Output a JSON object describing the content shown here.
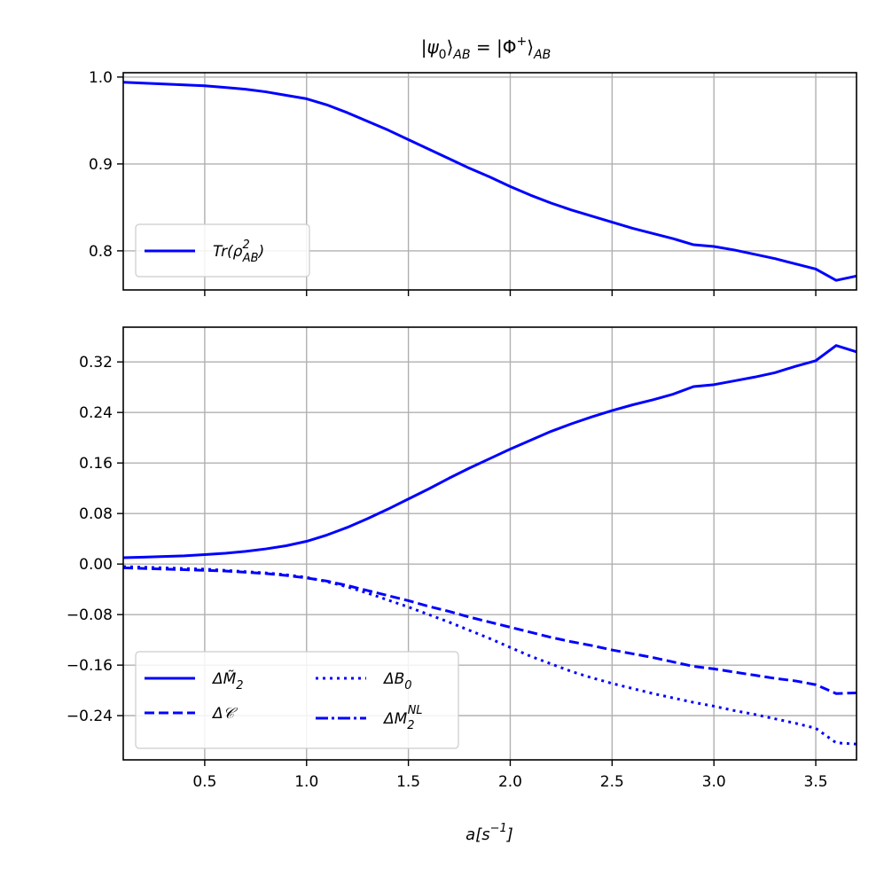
{
  "chart_data": [
    {
      "type": "line",
      "title": "|ψ₀⟩_AB = |Φ⁺⟩_AB",
      "xlabel": "",
      "ylabel": "",
      "xlim": [
        0.1,
        3.7
      ],
      "ylim": [
        0.755,
        1.005
      ],
      "xticks": [
        0.5,
        1.0,
        1.5,
        2.0,
        2.5,
        3.0,
        3.5
      ],
      "xtick_labels_visible": false,
      "yticks": [
        0.8,
        0.9,
        1.0
      ],
      "ytick_labels": [
        "0.8",
        "0.9",
        "1.0"
      ],
      "grid": true,
      "legend_position": "lower-left",
      "series": [
        {
          "name": "Tr(ρ²_AB)",
          "color": "#0000ff",
          "style": "solid",
          "x": [
            0.1,
            0.2,
            0.3,
            0.4,
            0.5,
            0.6,
            0.7,
            0.8,
            0.9,
            1.0,
            1.1,
            1.2,
            1.3,
            1.4,
            1.5,
            1.6,
            1.7,
            1.8,
            1.9,
            2.0,
            2.1,
            2.2,
            2.3,
            2.4,
            2.5,
            2.6,
            2.7,
            2.8,
            2.9,
            3.0,
            3.1,
            3.2,
            3.3,
            3.4,
            3.5,
            3.6,
            3.7
          ],
          "y": [
            0.994,
            0.993,
            0.992,
            0.991,
            0.99,
            0.988,
            0.986,
            0.983,
            0.979,
            0.975,
            0.968,
            0.959,
            0.949,
            0.939,
            0.928,
            0.917,
            0.906,
            0.895,
            0.885,
            0.874,
            0.864,
            0.855,
            0.847,
            0.84,
            0.833,
            0.826,
            0.82,
            0.814,
            0.807,
            0.805,
            0.801,
            0.796,
            0.791,
            0.785,
            0.779,
            0.766,
            0.771
          ]
        }
      ]
    },
    {
      "type": "line",
      "title": "",
      "xlabel": "a[s⁻¹]",
      "ylabel": "",
      "xlim": [
        0.1,
        3.7
      ],
      "ylim": [
        -0.31,
        0.375
      ],
      "xticks": [
        0.5,
        1.0,
        1.5,
        2.0,
        2.5,
        3.0,
        3.5
      ],
      "xtick_labels": [
        "0.5",
        "1.0",
        "1.5",
        "2.0",
        "2.5",
        "3.0",
        "3.5"
      ],
      "yticks": [
        -0.24,
        -0.16,
        -0.08,
        0.0,
        0.08,
        0.16,
        0.24,
        0.32
      ],
      "ytick_labels": [
        "−0.24",
        "−0.16",
        "−0.08",
        "0.00",
        "0.08",
        "0.16",
        "0.24",
        "0.32"
      ],
      "grid": true,
      "legend_position": "lower-left",
      "legend_columns": 2,
      "series": [
        {
          "name": "ΔM̃₂",
          "color": "#0000ff",
          "style": "solid",
          "x": [
            0.1,
            0.2,
            0.3,
            0.4,
            0.5,
            0.6,
            0.7,
            0.8,
            0.9,
            1.0,
            1.1,
            1.2,
            1.3,
            1.4,
            1.5,
            1.6,
            1.7,
            1.8,
            1.9,
            2.0,
            2.1,
            2.2,
            2.3,
            2.4,
            2.5,
            2.6,
            2.7,
            2.8,
            2.9,
            3.0,
            3.1,
            3.2,
            3.3,
            3.4,
            3.5,
            3.6,
            3.7
          ],
          "y": [
            0.01,
            0.011,
            0.012,
            0.013,
            0.015,
            0.017,
            0.02,
            0.024,
            0.029,
            0.036,
            0.046,
            0.058,
            0.072,
            0.087,
            0.103,
            0.119,
            0.136,
            0.152,
            0.167,
            0.182,
            0.196,
            0.21,
            0.222,
            0.233,
            0.243,
            0.252,
            0.26,
            0.269,
            0.281,
            0.284,
            0.29,
            0.296,
            0.303,
            0.313,
            0.322,
            0.346,
            0.336
          ]
        },
        {
          "name": "ΔC",
          "color": "#0000ff",
          "style": "dashed",
          "x": [
            0.1,
            0.2,
            0.3,
            0.4,
            0.5,
            0.6,
            0.7,
            0.8,
            0.9,
            1.0,
            1.1,
            1.2,
            1.3,
            1.4,
            1.5,
            1.6,
            1.7,
            1.8,
            1.9,
            2.0,
            2.1,
            2.2,
            2.3,
            2.4,
            2.5,
            2.6,
            2.7,
            2.8,
            2.9,
            3.0,
            3.1,
            3.2,
            3.3,
            3.4,
            3.5,
            3.6,
            3.7
          ],
          "y": [
            -0.006,
            -0.007,
            -0.008,
            -0.009,
            -0.01,
            -0.011,
            -0.013,
            -0.015,
            -0.018,
            -0.022,
            -0.027,
            -0.034,
            -0.042,
            -0.05,
            -0.058,
            -0.067,
            -0.075,
            -0.084,
            -0.092,
            -0.1,
            -0.108,
            -0.116,
            -0.123,
            -0.129,
            -0.136,
            -0.142,
            -0.148,
            -0.155,
            -0.162,
            -0.166,
            -0.171,
            -0.176,
            -0.181,
            -0.185,
            -0.191,
            -0.205,
            -0.204
          ]
        },
        {
          "name": "ΔB₀",
          "color": "#0000ff",
          "style": "dotted",
          "x": [
            0.1,
            0.2,
            0.3,
            0.4,
            0.5,
            0.6,
            0.7,
            0.8,
            0.9,
            1.0,
            1.1,
            1.2,
            1.3,
            1.4,
            1.5,
            1.6,
            1.7,
            1.8,
            1.9,
            2.0,
            2.1,
            2.2,
            2.3,
            2.4,
            2.5,
            2.6,
            2.7,
            2.8,
            2.9,
            3.0,
            3.1,
            3.2,
            3.3,
            3.4,
            3.5,
            3.6,
            3.7
          ],
          "y": [
            -0.004,
            -0.005,
            -0.006,
            -0.007,
            -0.008,
            -0.01,
            -0.012,
            -0.014,
            -0.017,
            -0.021,
            -0.028,
            -0.036,
            -0.046,
            -0.057,
            -0.068,
            -0.08,
            -0.092,
            -0.105,
            -0.118,
            -0.132,
            -0.146,
            -0.158,
            -0.17,
            -0.18,
            -0.189,
            -0.197,
            -0.205,
            -0.212,
            -0.219,
            -0.225,
            -0.232,
            -0.238,
            -0.245,
            -0.252,
            -0.26,
            -0.283,
            -0.285
          ]
        },
        {
          "name": "ΔM₂ᴺᴸ",
          "color": "#0000ff",
          "style": "dashdot",
          "x": [],
          "y": []
        }
      ]
    }
  ],
  "legend_labels": {
    "purity": "Tr(ρ",
    "purity_sup": "2",
    "purity_sub": "AB",
    "purity_close": ")",
    "m2": "ΔM̃",
    "m2_sub": "2",
    "c": "Δ𝒞",
    "b0": "ΔB",
    "b0_sub": "0",
    "m2nl": "ΔM",
    "m2nl_sub": "2",
    "m2nl_sup": "NL"
  },
  "title_parts": {
    "left": "|ψ",
    "left_sub": "0",
    "mid": "⟩",
    "mid_sub": "AB",
    "eq": " = |Φ",
    "eq_sup": "+",
    "right": "⟩",
    "right_sub": "AB"
  },
  "xlabel_parts": {
    "base": "a[s",
    "sup": "−1",
    "close": "]"
  }
}
